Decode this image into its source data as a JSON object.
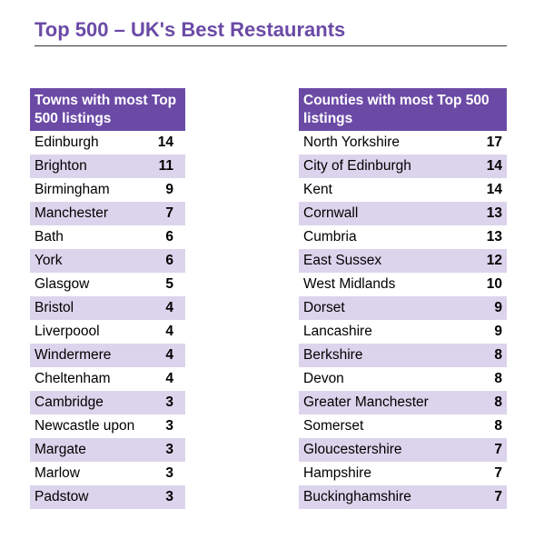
{
  "title": "Top 500 – UK's Best Restaurants",
  "colors": {
    "accent": "#6b4aa6",
    "stripe": "#dcd4ec"
  },
  "towns": {
    "header": "Towns with most Top 500 listings",
    "rows": [
      {
        "name": "Edinburgh",
        "count": "14"
      },
      {
        "name": "Brighton",
        "count": "11"
      },
      {
        "name": "Birmingham",
        "count": "9"
      },
      {
        "name": "Manchester",
        "count": "7"
      },
      {
        "name": "Bath",
        "count": "6"
      },
      {
        "name": "York",
        "count": "6"
      },
      {
        "name": "Glasgow",
        "count": "5"
      },
      {
        "name": "Bristol",
        "count": "4"
      },
      {
        "name": "Liverpoool",
        "count": "4"
      },
      {
        "name": "Windermere",
        "count": "4"
      },
      {
        "name": "Cheltenham",
        "count": "4"
      },
      {
        "name": "Cambridge",
        "count": "3"
      },
      {
        "name": "Newcastle upon",
        "count": "3"
      },
      {
        "name": "Margate",
        "count": "3"
      },
      {
        "name": "Marlow",
        "count": "3"
      },
      {
        "name": "Padstow",
        "count": "3"
      }
    ]
  },
  "counties": {
    "header": "Counties with most Top 500 listings",
    "rows": [
      {
        "name": "North Yorkshire",
        "count": "17"
      },
      {
        "name": "City of Edinburgh",
        "count": "14"
      },
      {
        "name": "Kent",
        "count": "14"
      },
      {
        "name": "Cornwall",
        "count": "13"
      },
      {
        "name": "Cumbria",
        "count": "13"
      },
      {
        "name": "East Sussex",
        "count": "12"
      },
      {
        "name": "West Midlands",
        "count": "10"
      },
      {
        "name": "Dorset",
        "count": "9"
      },
      {
        "name": "Lancashire",
        "count": "9"
      },
      {
        "name": "Berkshire",
        "count": "8"
      },
      {
        "name": "Devon",
        "count": "8"
      },
      {
        "name": "Greater Manchester",
        "count": "8"
      },
      {
        "name": "Somerset",
        "count": "8"
      },
      {
        "name": "Gloucestershire",
        "count": "7"
      },
      {
        "name": "Hampshire",
        "count": "7"
      },
      {
        "name": "Buckinghamshire",
        "count": "7"
      }
    ]
  }
}
